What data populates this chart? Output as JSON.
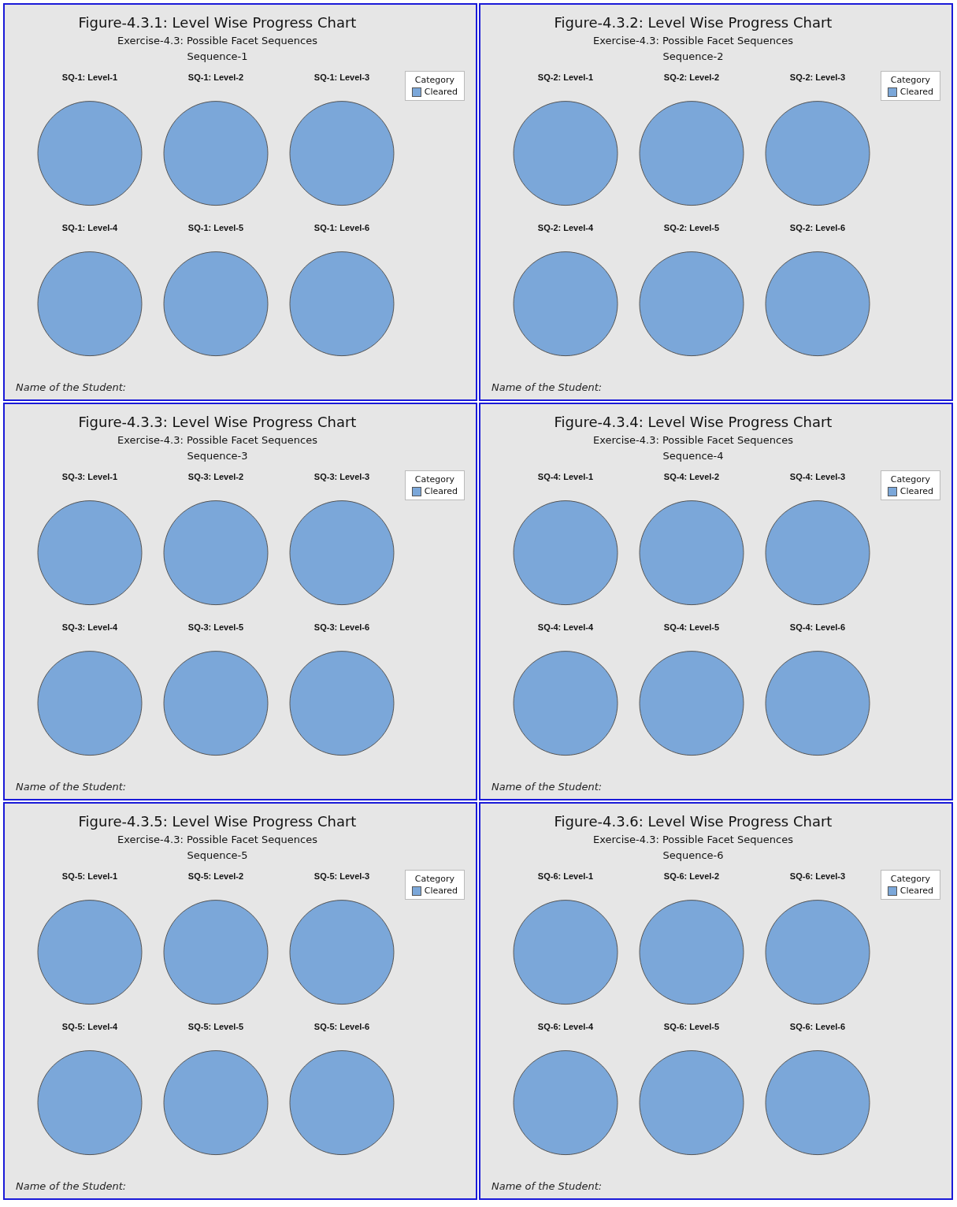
{
  "chart_data": [
    {
      "type": "pie",
      "title": "Figure-4.3.1: Level Wise Progress Chart",
      "subtitle": "Exercise-4.3: Possible Facet Sequences\nSequence-1",
      "categories": [
        "Cleared"
      ],
      "colors": [
        "#7ba7d9"
      ],
      "legend": "top right",
      "legend_title": "Category",
      "annotations": [
        "Name of the Student:"
      ],
      "series": [
        {
          "name": "SQ-1: Level-1",
          "values": [
            100
          ]
        },
        {
          "name": "SQ-1: Level-2",
          "values": [
            100
          ]
        },
        {
          "name": "SQ-1: Level-3",
          "values": [
            100
          ]
        },
        {
          "name": "SQ-1: Level-4",
          "values": [
            100
          ]
        },
        {
          "name": "SQ-1: Level-5",
          "values": [
            100
          ]
        },
        {
          "name": "SQ-1: Level-6",
          "values": [
            100
          ]
        }
      ]
    },
    {
      "type": "pie",
      "title": "Figure-4.3.2: Level Wise Progress Chart",
      "subtitle": "Exercise-4.3: Possible Facet Sequences\nSequence-2",
      "categories": [
        "Cleared"
      ],
      "colors": [
        "#7ba7d9"
      ],
      "legend": "top right",
      "legend_title": "Category",
      "annotations": [
        "Name of the Student:"
      ],
      "series": [
        {
          "name": "SQ-2: Level-1",
          "values": [
            100
          ]
        },
        {
          "name": "SQ-2: Level-2",
          "values": [
            100
          ]
        },
        {
          "name": "SQ-2: Level-3",
          "values": [
            100
          ]
        },
        {
          "name": "SQ-2: Level-4",
          "values": [
            100
          ]
        },
        {
          "name": "SQ-2: Level-5",
          "values": [
            100
          ]
        },
        {
          "name": "SQ-2: Level-6",
          "values": [
            100
          ]
        }
      ]
    },
    {
      "type": "pie",
      "title": "Figure-4.3.3: Level Wise Progress Chart",
      "subtitle": "Exercise-4.3: Possible Facet Sequences\nSequence-3",
      "categories": [
        "Cleared"
      ],
      "colors": [
        "#7ba7d9"
      ],
      "legend": "top right",
      "legend_title": "Category",
      "annotations": [
        "Name of the Student:"
      ],
      "series": [
        {
          "name": "SQ-3: Level-1",
          "values": [
            100
          ]
        },
        {
          "name": "SQ-3: Level-2",
          "values": [
            100
          ]
        },
        {
          "name": "SQ-3: Level-3",
          "values": [
            100
          ]
        },
        {
          "name": "SQ-3: Level-4",
          "values": [
            100
          ]
        },
        {
          "name": "SQ-3: Level-5",
          "values": [
            100
          ]
        },
        {
          "name": "SQ-3: Level-6",
          "values": [
            100
          ]
        }
      ]
    },
    {
      "type": "pie",
      "title": "Figure-4.3.4: Level Wise Progress Chart",
      "subtitle": "Exercise-4.3: Possible Facet Sequences\nSequence-4",
      "categories": [
        "Cleared"
      ],
      "colors": [
        "#7ba7d9"
      ],
      "legend": "top right",
      "legend_title": "Category",
      "annotations": [
        "Name of the Student:"
      ],
      "series": [
        {
          "name": "SQ-4: Level-1",
          "values": [
            100
          ]
        },
        {
          "name": "SQ-4: Level-2",
          "values": [
            100
          ]
        },
        {
          "name": "SQ-4: Level-3",
          "values": [
            100
          ]
        },
        {
          "name": "SQ-4: Level-4",
          "values": [
            100
          ]
        },
        {
          "name": "SQ-4: Level-5",
          "values": [
            100
          ]
        },
        {
          "name": "SQ-4: Level-6",
          "values": [
            100
          ]
        }
      ]
    },
    {
      "type": "pie",
      "title": "Figure-4.3.5: Level Wise Progress Chart",
      "subtitle": "Exercise-4.3: Possible Facet Sequences\nSequence-5",
      "categories": [
        "Cleared"
      ],
      "colors": [
        "#7ba7d9"
      ],
      "legend": "top right",
      "legend_title": "Category",
      "annotations": [
        "Name of the Student:"
      ],
      "series": [
        {
          "name": "SQ-5: Level-1",
          "values": [
            100
          ]
        },
        {
          "name": "SQ-5: Level-2",
          "values": [
            100
          ]
        },
        {
          "name": "SQ-5: Level-3",
          "values": [
            100
          ]
        },
        {
          "name": "SQ-5: Level-4",
          "values": [
            100
          ]
        },
        {
          "name": "SQ-5: Level-5",
          "values": [
            100
          ]
        },
        {
          "name": "SQ-5: Level-6",
          "values": [
            100
          ]
        }
      ]
    },
    {
      "type": "pie",
      "title": "Figure-4.3.6: Level Wise Progress Chart",
      "subtitle": "Exercise-4.3: Possible Facet Sequences\nSequence-6",
      "categories": [
        "Cleared"
      ],
      "colors": [
        "#7ba7d9"
      ],
      "legend": "top right",
      "legend_title": "Category",
      "annotations": [
        "Name of the Student:"
      ],
      "series": [
        {
          "name": "SQ-6: Level-1",
          "values": [
            100
          ]
        },
        {
          "name": "SQ-6: Level-2",
          "values": [
            100
          ]
        },
        {
          "name": "SQ-6: Level-3",
          "values": [
            100
          ]
        },
        {
          "name": "SQ-6: Level-4",
          "values": [
            100
          ]
        },
        {
          "name": "SQ-6: Level-5",
          "values": [
            100
          ]
        },
        {
          "name": "SQ-6: Level-6",
          "values": [
            100
          ]
        }
      ]
    }
  ]
}
